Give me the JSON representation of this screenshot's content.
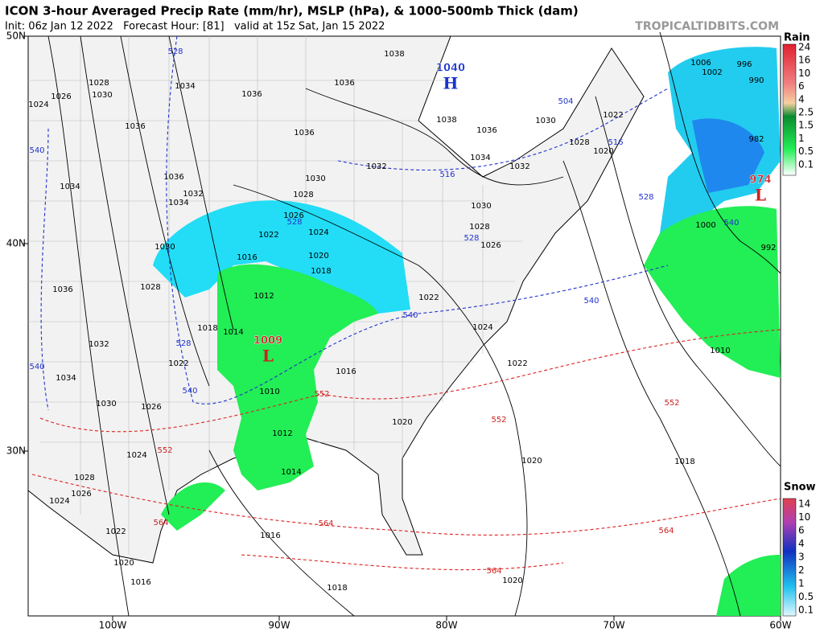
{
  "header": {
    "title": "ICON 3-hour Averaged Precip Rate (mm/hr), MSLP (hPa), & 1000-500mb Thick (dam)",
    "subtitle": "Init: 06z Jan 12 2022   Forecast Hour: [81]   valid at 15z Sat, Jan 15 2022",
    "credit": "TROPICALTIDBITS.COM"
  },
  "axes": {
    "lat_labels": [
      "50N",
      "40N",
      "30N"
    ],
    "lon_labels": [
      "100W",
      "90W",
      "80W",
      "70W",
      "60W"
    ]
  },
  "legend": {
    "rain": {
      "title": "Rain",
      "labels": [
        "24",
        "16",
        "10",
        "6",
        "4",
        "2.5",
        "1.5",
        "1",
        "0.5",
        "0.1"
      ]
    },
    "snow": {
      "title": "Snow",
      "labels": [
        "14",
        "10",
        "6",
        "4",
        "3",
        "2",
        "1",
        "0.5",
        "0.1"
      ]
    }
  },
  "pressure_centers": [
    {
      "symbol": "H",
      "value": "1040"
    },
    {
      "symbol": "L",
      "value": "1009"
    },
    {
      "symbol": "L",
      "value": "974"
    }
  ],
  "isobar_labels": [
    "1038",
    "1036",
    "1036",
    "1028",
    "1030",
    "1026",
    "1024",
    "1034",
    "1036",
    "1034",
    "1036",
    "1032",
    "1034",
    "1030",
    "1028",
    "1036",
    "1032",
    "1034",
    "1030",
    "1026",
    "1022",
    "1018",
    "1014",
    "1016",
    "1012",
    "1022",
    "1026",
    "1024",
    "1020",
    "1018",
    "1028",
    "1030",
    "1032",
    "1036",
    "1030",
    "1022",
    "1028",
    "1020",
    "1034",
    "1032",
    "1030",
    "1028",
    "1026",
    "1022",
    "1024",
    "1022",
    "1016",
    "1020",
    "1010",
    "1012",
    "1014",
    "1016",
    "1020",
    "1018",
    "1010",
    "1000",
    "992",
    "982",
    "990",
    "996",
    "1002",
    "1006",
    "1024",
    "1026",
    "1028",
    "1022",
    "1020",
    "1016",
    "1018",
    "1020",
    "1024",
    "1036",
    "1038"
  ],
  "thickness_labels": [
    "528",
    "540",
    "504",
    "516",
    "516",
    "528",
    "528",
    "528",
    "540",
    "540",
    "540",
    "528",
    "540",
    "540",
    "552",
    "552",
    "552",
    "552",
    "564",
    "564",
    "564",
    "564"
  ]
}
